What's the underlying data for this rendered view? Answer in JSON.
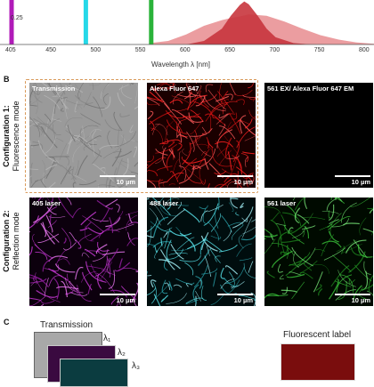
{
  "panel_a": {
    "ytick": "0.25",
    "xticks": [
      "405",
      "450",
      "500",
      "550",
      "600",
      "650",
      "700",
      "750",
      "800"
    ],
    "xlabel": "Wavelength λ [nm]",
    "laser_lines": [
      {
        "name": "405",
        "wavelength": 405,
        "color": "#b01ab8"
      },
      {
        "name": "488",
        "wavelength": 488,
        "color": "#26d8e8"
      },
      {
        "name": "561",
        "wavelength": 561,
        "color": "#2bb33a"
      }
    ]
  },
  "chart_data": {
    "type": "area",
    "xlabel": "Wavelength λ [nm]",
    "xlim": [
      400,
      810
    ],
    "series": [
      {
        "color": "#e88c8f",
        "x": [
          560,
          580,
          600,
          620,
          640,
          650,
          660,
          670,
          690,
          710,
          730,
          750,
          770,
          790,
          810
        ],
        "y": [
          0.02,
          0.05,
          0.14,
          0.26,
          0.34,
          0.37,
          0.39,
          0.42,
          0.4,
          0.32,
          0.22,
          0.13,
          0.07,
          0.03,
          0.01
        ]
      },
      {
        "color": "#c8353d",
        "x": [
          600,
          620,
          640,
          650,
          660,
          665,
          670,
          680,
          690,
          700,
          720,
          740
        ],
        "y": [
          0.0,
          0.05,
          0.22,
          0.4,
          0.55,
          0.6,
          0.56,
          0.4,
          0.22,
          0.1,
          0.02,
          0.0
        ]
      }
    ]
  },
  "panel_b": {
    "label": "B",
    "config1": {
      "title": "Configuration 1:",
      "subtitle": "Fluorescence mode"
    },
    "config2": {
      "title": "Configuration 2:",
      "subtitle": "Reflection mode"
    },
    "panels": [
      {
        "title": "Transmission",
        "scale": "10 µm"
      },
      {
        "title": "Alexa Fluor 647",
        "scale": "10 µm"
      },
      {
        "title": "561 EX/ Alexa Fluor 647 EM",
        "scale": "10 µm"
      },
      {
        "title": "405 laser",
        "scale": "10 µm"
      },
      {
        "title": "488 laser",
        "scale": "10 µm"
      },
      {
        "title": "561 laser",
        "scale": "10 µm"
      }
    ]
  },
  "panel_c": {
    "label": "C",
    "transmission": "Transmission",
    "fluorescent": "Fluorescent label",
    "lambdas": [
      "λ₁",
      "λ₂",
      "λ₃"
    ]
  },
  "colors": {
    "highlight_box": "#d99a5a"
  }
}
